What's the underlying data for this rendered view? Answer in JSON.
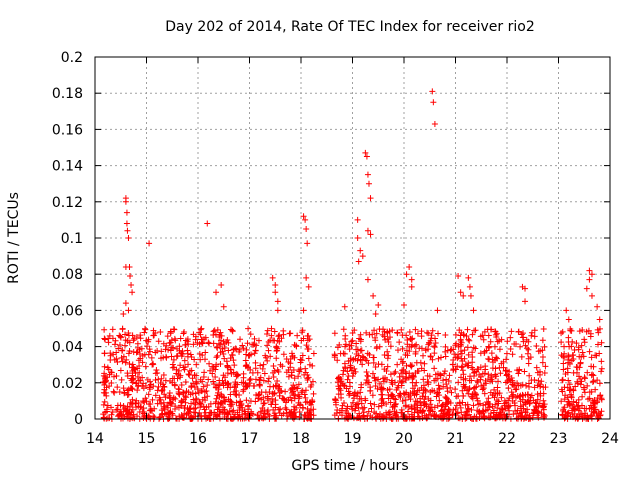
{
  "chart_data": {
    "type": "scatter",
    "title": "Day 202 of 2014, Rate Of TEC Index for receiver rio2",
    "xlabel": "GPS time / hours",
    "ylabel": "ROTI / TECUs",
    "xlim": [
      14,
      24
    ],
    "ylim": [
      0,
      0.2
    ],
    "grid": true,
    "marker": "+",
    "series_color": "#ff0000",
    "xticks": [
      "14",
      "15",
      "16",
      "17",
      "18",
      "19",
      "20",
      "21",
      "22",
      "23",
      "24"
    ],
    "yticks": [
      "0",
      "0.02",
      "0.04",
      "0.06",
      "0.08",
      "0.1",
      "0.12",
      "0.14",
      "0.16",
      "0.18",
      "0.2"
    ],
    "data_segments": [
      [
        14.15,
        18.25
      ],
      [
        18.65,
        22.75
      ],
      [
        23.05,
        23.85
      ]
    ],
    "background_range": [
      0.0,
      0.05
    ],
    "highlight_points": [
      [
        14.55,
        0.058
      ],
      [
        14.6,
        0.064
      ],
      [
        14.6,
        0.122
      ],
      [
        14.6,
        0.12
      ],
      [
        14.62,
        0.114
      ],
      [
        14.62,
        0.108
      ],
      [
        14.63,
        0.104
      ],
      [
        14.65,
        0.1
      ],
      [
        14.6,
        0.084
      ],
      [
        14.67,
        0.084
      ],
      [
        14.68,
        0.079
      ],
      [
        14.7,
        0.074
      ],
      [
        14.72,
        0.07
      ],
      [
        14.65,
        0.06
      ],
      [
        15.05,
        0.097
      ],
      [
        16.18,
        0.108
      ],
      [
        16.35,
        0.07
      ],
      [
        16.45,
        0.074
      ],
      [
        16.5,
        0.062
      ],
      [
        17.45,
        0.078
      ],
      [
        17.5,
        0.074
      ],
      [
        17.5,
        0.07
      ],
      [
        17.55,
        0.065
      ],
      [
        17.55,
        0.06
      ],
      [
        18.05,
        0.112
      ],
      [
        18.08,
        0.11
      ],
      [
        18.1,
        0.105
      ],
      [
        18.12,
        0.097
      ],
      [
        18.1,
        0.078
      ],
      [
        18.15,
        0.073
      ],
      [
        18.05,
        0.06
      ],
      [
        18.85,
        0.062
      ],
      [
        19.1,
        0.11
      ],
      [
        19.1,
        0.1
      ],
      [
        19.15,
        0.093
      ],
      [
        19.12,
        0.087
      ],
      [
        19.2,
        0.09
      ],
      [
        19.25,
        0.147
      ],
      [
        19.28,
        0.145
      ],
      [
        19.3,
        0.135
      ],
      [
        19.32,
        0.13
      ],
      [
        19.35,
        0.122
      ],
      [
        19.3,
        0.104
      ],
      [
        19.35,
        0.102
      ],
      [
        19.3,
        0.077
      ],
      [
        19.45,
        0.058
      ],
      [
        19.5,
        0.063
      ],
      [
        19.4,
        0.068
      ],
      [
        20.05,
        0.08
      ],
      [
        20.1,
        0.084
      ],
      [
        20.15,
        0.077
      ],
      [
        20.15,
        0.073
      ],
      [
        20.0,
        0.063
      ],
      [
        20.55,
        0.181
      ],
      [
        20.57,
        0.175
      ],
      [
        20.6,
        0.163
      ],
      [
        20.65,
        0.06
      ],
      [
        21.05,
        0.079
      ],
      [
        21.1,
        0.07
      ],
      [
        21.15,
        0.068
      ],
      [
        21.25,
        0.078
      ],
      [
        21.28,
        0.073
      ],
      [
        21.3,
        0.068
      ],
      [
        21.35,
        0.06
      ],
      [
        22.3,
        0.073
      ],
      [
        22.35,
        0.072
      ],
      [
        22.35,
        0.065
      ],
      [
        23.15,
        0.06
      ],
      [
        23.2,
        0.055
      ],
      [
        23.6,
        0.082
      ],
      [
        23.65,
        0.08
      ],
      [
        23.6,
        0.077
      ],
      [
        23.55,
        0.072
      ],
      [
        23.65,
        0.068
      ],
      [
        23.75,
        0.062
      ],
      [
        23.8,
        0.055
      ]
    ]
  }
}
